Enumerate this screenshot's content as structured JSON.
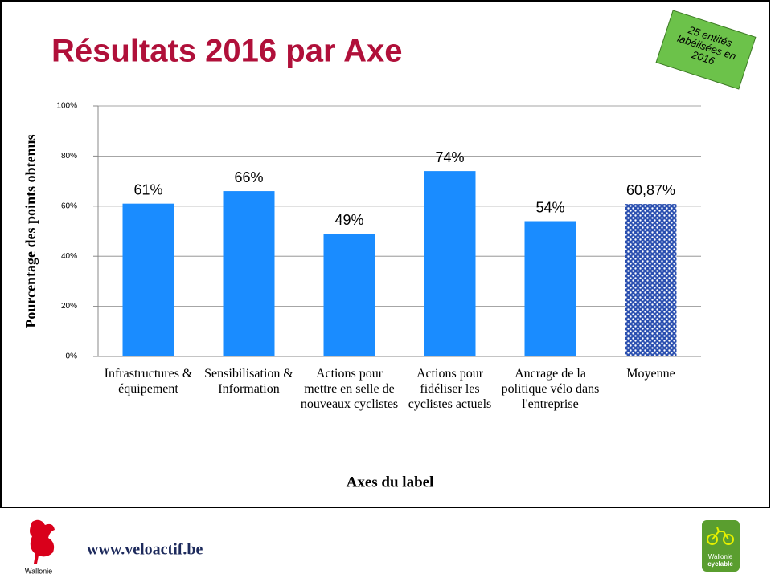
{
  "slide": {
    "title": "Résultats 2016 par Axe",
    "badge": "25 entités labélisées en 2016",
    "url": "www.veloactif.be",
    "logo_left": "Wallonie",
    "logo_right": [
      "Wallonie",
      "cyclable"
    ]
  },
  "chart_data": {
    "type": "bar",
    "categories": [
      "Infrastructures & équipement",
      "Sensibilisation & Information",
      "Actions pour mettre en selle de nouveaux cyclistes",
      "Actions pour fidéliser les cyclistes actuels",
      "Ancrage de la politique vélo dans l'entreprise",
      "Moyenne"
    ],
    "values": [
      61,
      66,
      49,
      74,
      54,
      60.87
    ],
    "value_labels": [
      "61%",
      "66%",
      "49%",
      "74%",
      "54%",
      "60,87%"
    ],
    "color": "#1a8cff",
    "patterned": [
      false,
      false,
      false,
      false,
      false,
      true
    ],
    "xlabel": "Axes du label",
    "ylabel": "Pourcentage des points obtenus",
    "ylim": [
      0,
      100
    ],
    "yticks": [
      {
        "value": 0,
        "label": "0%"
      },
      {
        "value": 20,
        "label": "20%"
      },
      {
        "value": 40,
        "label": "40%"
      },
      {
        "value": 60,
        "label": "60%"
      },
      {
        "value": 80,
        "label": "80%"
      },
      {
        "value": 100,
        "label": "100%"
      }
    ],
    "grid": true
  }
}
